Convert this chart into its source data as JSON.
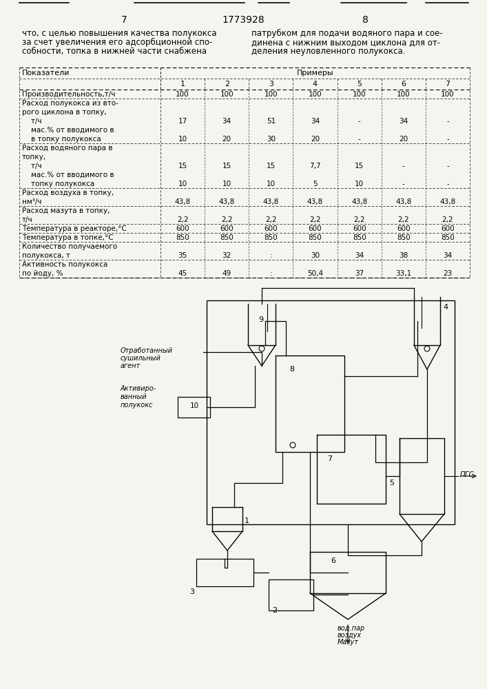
{
  "page_number_left": "7",
  "page_number_center": "1773928",
  "page_number_right": "8",
  "left_text_lines": [
    "что, с целью повышения качества полукокса",
    "за счет увеличения его адсорбционной спо-",
    "собности, топка в нижней части снабжена"
  ],
  "right_text_lines": [
    "патрубком для подачи водяного пара и сое-",
    "динена с нижним выходом циклона для от-",
    "деления неуловленного полукокса."
  ],
  "bg_color": "#f5f5f0"
}
